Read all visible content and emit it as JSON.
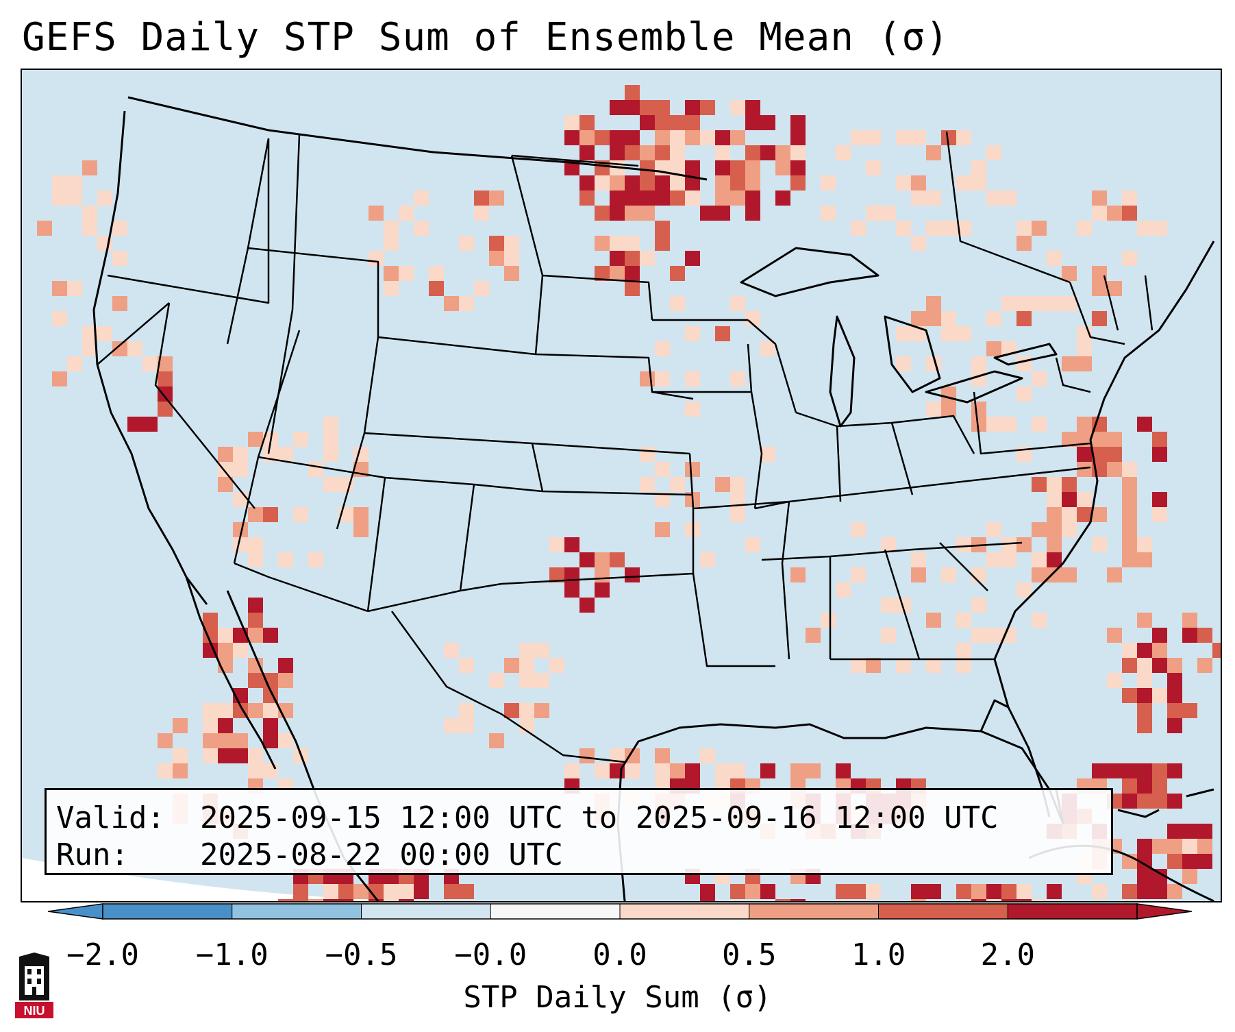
{
  "title": "GEFS Daily STP Sum of Ensemble Mean (σ)",
  "info": {
    "valid_key": "Valid:",
    "valid_value": "2025-09-15 12:00 UTC to 2025-09-16 12:00 UTC",
    "run_key": "Run:",
    "run_value": "2025-08-22 00:00 UTC"
  },
  "colorbar": {
    "label": "STP Daily Sum (σ)",
    "ticks": [
      "−2.0",
      "−1.0",
      "−0.5",
      "−0.0",
      "0.0",
      "0.5",
      "1.0",
      "2.0"
    ],
    "colors": [
      "#4a90c8",
      "#91c3e0",
      "#d3e5f0",
      "#f7f7f7",
      "#fbd9c8",
      "#ef9f84",
      "#d6604d",
      "#b2182b"
    ]
  },
  "map": {
    "projection": "Lambert conformal, CONUS",
    "base_color": "#d1e5f0",
    "outline_color": "#000000",
    "hotspots": [
      {
        "region": "North Dakota / Minnesota / Manitoba border",
        "level": "high"
      },
      {
        "region": "Ontario north of Lake Superior",
        "level": "high"
      },
      {
        "region": "Northern California",
        "level": "high"
      },
      {
        "region": "Western Oklahoma / Texas panhandle",
        "level": "high"
      },
      {
        "region": "Gulf of California / Baja",
        "level": "high"
      },
      {
        "region": "Western Gulf of Mexico",
        "level": "moderate"
      },
      {
        "region": "Caribbean / Bahamas",
        "level": "high"
      },
      {
        "region": "Western Atlantic offshore",
        "level": "moderate"
      }
    ]
  },
  "logo": {
    "text": "NIU"
  }
}
